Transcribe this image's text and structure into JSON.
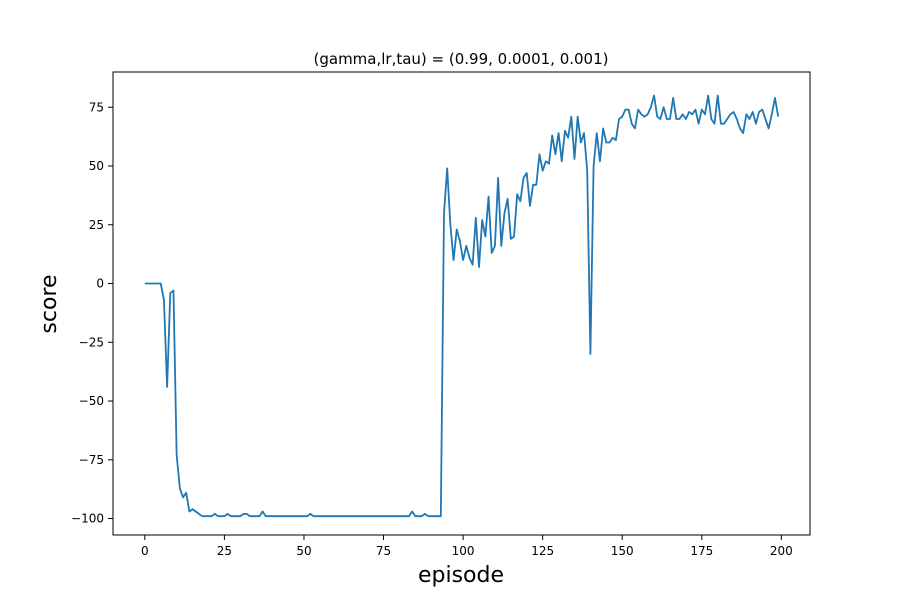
{
  "chart_data": {
    "type": "line",
    "title": "(gamma,lr,tau) = (0.99, 0.0001, 0.001)",
    "xlabel": "episode",
    "ylabel": "score",
    "xlim": [
      -10,
      209
    ],
    "ylim": [
      -107,
      90
    ],
    "xticks": [
      0,
      25,
      50,
      75,
      100,
      125,
      150,
      175,
      200
    ],
    "yticks": [
      -100,
      -75,
      -50,
      -25,
      0,
      25,
      50,
      75
    ],
    "grid": false,
    "line_color": "#1f77b4",
    "series": [
      {
        "x": [
          0,
          1,
          2,
          3,
          4,
          5,
          6,
          7,
          8,
          9,
          10,
          11,
          12,
          13,
          14,
          15,
          16,
          17,
          18,
          19,
          20,
          21,
          22,
          23,
          24,
          25,
          26,
          27,
          28,
          29,
          30,
          31,
          32,
          33,
          34,
          35,
          36,
          37,
          38,
          39,
          40,
          41,
          42,
          43,
          44,
          45,
          46,
          47,
          48,
          49,
          50,
          51,
          52,
          53,
          54,
          55,
          56,
          57,
          58,
          59,
          60,
          61,
          62,
          63,
          64,
          65,
          66,
          67,
          68,
          69,
          70,
          71,
          72,
          73,
          74,
          75,
          76,
          77,
          78,
          79,
          80,
          81,
          82,
          83,
          84,
          85,
          86,
          87,
          88,
          89,
          90,
          91,
          92,
          93,
          94,
          95,
          96,
          97,
          98,
          99,
          100,
          101,
          102,
          103,
          104,
          105,
          106,
          107,
          108,
          109,
          110,
          111,
          112,
          113,
          114,
          115,
          116,
          117,
          118,
          119,
          120,
          121,
          122,
          123,
          124,
          125,
          126,
          127,
          128,
          129,
          130,
          131,
          132,
          133,
          134,
          135,
          136,
          137,
          138,
          139,
          140,
          141,
          142,
          143,
          144,
          145,
          146,
          147,
          148,
          149,
          150,
          151,
          152,
          153,
          154,
          155,
          156,
          157,
          158,
          159,
          160,
          161,
          162,
          163,
          164,
          165,
          166,
          167,
          168,
          169,
          170,
          171,
          172,
          173,
          174,
          175,
          176,
          177,
          178,
          179,
          180,
          181,
          182,
          183,
          184,
          185,
          186,
          187,
          188,
          189,
          190,
          191,
          192,
          193,
          194,
          195,
          196,
          197,
          198,
          199
        ],
        "values": [
          0,
          0,
          0,
          0,
          0,
          0,
          -7,
          -44,
          -4,
          -3,
          -73,
          -87,
          -91,
          -89,
          -97,
          -96,
          -97,
          -98,
          -99,
          -99,
          -99,
          -99,
          -98,
          -99,
          -99,
          -99,
          -98,
          -99,
          -99,
          -99,
          -99,
          -98,
          -98,
          -99,
          -99,
          -99,
          -99,
          -97,
          -99,
          -99,
          -99,
          -99,
          -99,
          -99,
          -99,
          -99,
          -99,
          -99,
          -99,
          -99,
          -99,
          -99,
          -98,
          -99,
          -99,
          -99,
          -99,
          -99,
          -99,
          -99,
          -99,
          -99,
          -99,
          -99,
          -99,
          -99,
          -99,
          -99,
          -99,
          -99,
          -99,
          -99,
          -99,
          -99,
          -99,
          -99,
          -99,
          -99,
          -99,
          -99,
          -99,
          -99,
          -99,
          -99,
          -97,
          -99,
          -99,
          -99,
          -98,
          -99,
          -99,
          -99,
          -99,
          -99,
          30,
          49,
          25,
          10,
          23,
          18,
          10,
          16,
          11,
          8,
          28,
          7,
          27,
          20,
          37,
          13,
          16,
          45,
          16,
          30,
          36,
          19,
          20,
          38,
          35,
          45,
          47,
          33,
          42,
          42,
          55,
          48,
          52,
          51,
          63,
          55,
          64,
          52,
          65,
          62,
          71,
          53,
          71,
          60,
          64,
          48,
          -30,
          50,
          64,
          52,
          66,
          60,
          60,
          62,
          61,
          70,
          71,
          74,
          74,
          68,
          66,
          74,
          72,
          71,
          72,
          75,
          80,
          71,
          70,
          75,
          70,
          70,
          79,
          70,
          70,
          72,
          70,
          73,
          72,
          74,
          68,
          74,
          72,
          80,
          70,
          68,
          80,
          68,
          68,
          70,
          72,
          73,
          70,
          66,
          64,
          72,
          70,
          73,
          68,
          73,
          74,
          70,
          66,
          72,
          79,
          71
        ]
      }
    ]
  }
}
